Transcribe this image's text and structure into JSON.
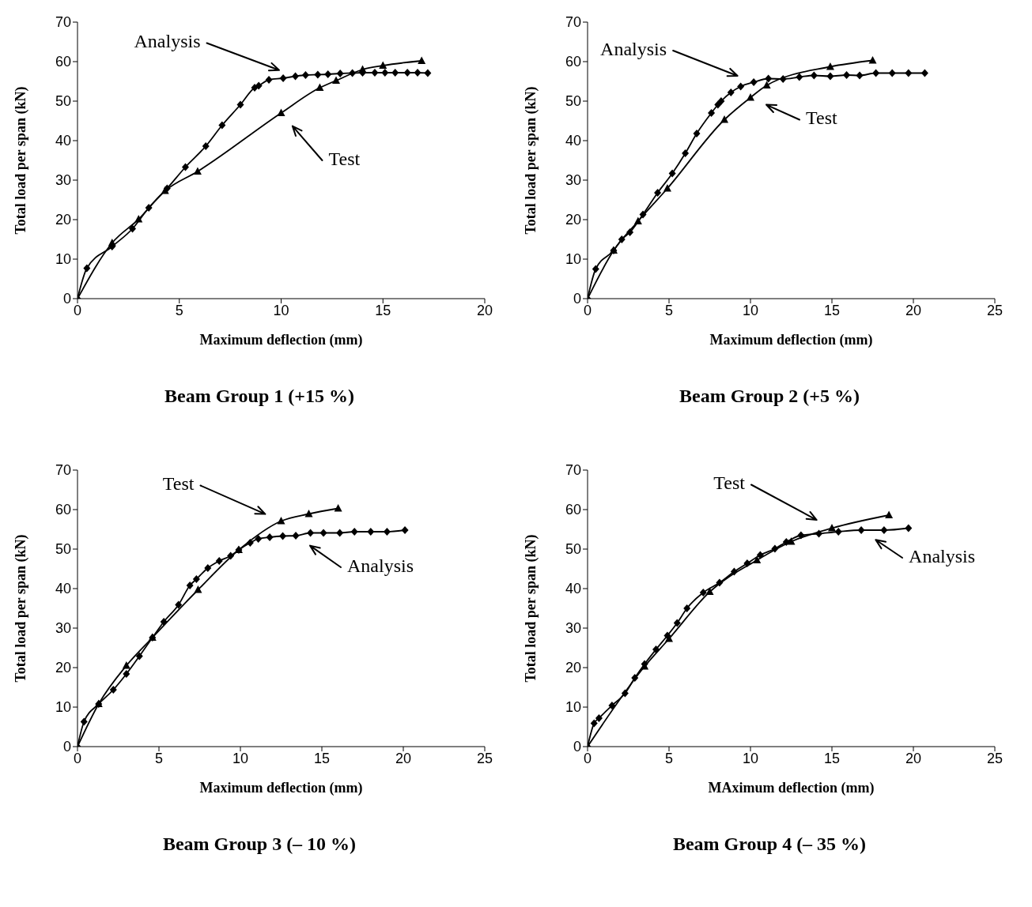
{
  "chart_data": [
    {
      "type": "line",
      "title": "Beam Group 1 (+15 %)",
      "xlabel": "Maximum deflection (mm)",
      "ylabel": "Total load per span (kN)",
      "xlim": [
        0,
        20
      ],
      "xticks": [
        0,
        5,
        10,
        15,
        20
      ],
      "ylim": [
        0,
        70
      ],
      "yticks": [
        0,
        10,
        20,
        30,
        40,
        50,
        60,
        70
      ],
      "line_style": "solid",
      "series": [
        {
          "name": "Analysis",
          "color": "#000000",
          "marker": "diamond",
          "x": [
            0,
            0.46,
            1.7,
            2.7,
            3.5,
            4.4,
            5.3,
            6.3,
            7.1,
            8.0,
            8.7,
            8.9,
            9.4,
            10.1,
            10.7,
            11.2,
            11.8,
            12.3,
            12.9,
            13.5,
            14.0,
            14.6,
            15.1,
            15.6,
            16.2,
            16.7,
            17.2
          ],
          "values": [
            0,
            7.7,
            13.2,
            17.7,
            23,
            27.9,
            33.3,
            38.6,
            43.9,
            49.1,
            53.4,
            53.9,
            55.4,
            55.8,
            56.3,
            56.6,
            56.7,
            56.8,
            57,
            57.1,
            57.2,
            57.2,
            57.2,
            57.2,
            57.2,
            57.2,
            57.1
          ]
        },
        {
          "name": "Test",
          "color": "#000000",
          "marker": "triangle",
          "x": [
            0,
            1.7,
            3.0,
            4.3,
            5.9,
            10.0,
            11.9,
            12.7,
            14.0,
            15.0,
            16.9
          ],
          "values": [
            0,
            14.1,
            20.1,
            27.3,
            32.2,
            47.0,
            53.4,
            55.2,
            58.0,
            59,
            60.2
          ]
        }
      ]
    },
    {
      "type": "line",
      "title": "Beam Group 2 (+5 %)",
      "xlabel": "Maximum deflection (mm)",
      "ylabel": "Total load per span (kN)",
      "xlim": [
        0,
        25
      ],
      "xticks": [
        0,
        5,
        10,
        15,
        20,
        25
      ],
      "ylim": [
        0,
        70
      ],
      "yticks": [
        0,
        10,
        20,
        30,
        40,
        50,
        60,
        70
      ],
      "line_style": "solid",
      "series": [
        {
          "name": "Analysis",
          "color": "#000000",
          "marker": "diamond",
          "x": [
            0,
            0.5,
            1.6,
            2.1,
            2.6,
            3.4,
            4.3,
            5.2,
            6.0,
            6.7,
            7.6,
            8.0,
            8.2,
            8.8,
            9.4,
            10.2,
            11.1,
            12.0,
            13.0,
            13.9,
            14.9,
            15.9,
            16.7,
            17.7,
            18.7,
            19.7,
            20.7
          ],
          "values": [
            0,
            7.5,
            12.2,
            15,
            16.8,
            21.3,
            26.8,
            31.7,
            36.8,
            41.8,
            47,
            49.1,
            50,
            52.2,
            53.7,
            54.8,
            55.7,
            55.6,
            56.1,
            56.5,
            56.3,
            56.6,
            56.5,
            57.1,
            57.1,
            57.1,
            57.1
          ]
        },
        {
          "name": "Test",
          "color": "#000000",
          "marker": "triangle",
          "x": [
            0,
            1.6,
            3.1,
            4.9,
            8.4,
            10.0,
            11.0,
            14.9,
            17.5
          ],
          "values": [
            0,
            12.2,
            19.6,
            27.9,
            45.3,
            50.9,
            54,
            58.7,
            60.3
          ]
        }
      ]
    },
    {
      "type": "line",
      "title": "Beam Group 3 (– 10 %)",
      "xlabel": "Maximum deflection (mm)",
      "ylabel": "Total load per span (kN)",
      "xlim": [
        0,
        25
      ],
      "xticks": [
        0,
        5,
        10,
        15,
        20,
        25
      ],
      "ylim": [
        0,
        70
      ],
      "yticks": [
        0,
        10,
        20,
        30,
        40,
        50,
        60,
        70
      ],
      "line_style": "solid",
      "series": [
        {
          "name": "Analysis",
          "color": "#000000",
          "marker": "diamond",
          "x": [
            0,
            0.4,
            1.3,
            2.2,
            3.0,
            3.8,
            4.6,
            5.3,
            6.2,
            6.9,
            7.3,
            8.0,
            8.7,
            9.4,
            9.9,
            10.6,
            11.1,
            11.8,
            12.6,
            13.4,
            14.3,
            15.1,
            16.1,
            17.0,
            18.0,
            19.0,
            20.1
          ],
          "values": [
            0,
            6.3,
            10.8,
            14.4,
            18.4,
            22.9,
            27.6,
            31.6,
            35.9,
            40.8,
            42.4,
            45.2,
            47,
            48.3,
            49.8,
            51.6,
            52.6,
            53,
            53.3,
            53.4,
            54.1,
            54.1,
            54.1,
            54.4,
            54.4,
            54.4,
            54.8
          ]
        },
        {
          "name": "Test",
          "color": "#000000",
          "marker": "triangle",
          "x": [
            0,
            1.3,
            3.0,
            4.6,
            7.4,
            9.9,
            12.5,
            14.2,
            16.0
          ],
          "values": [
            0,
            10.8,
            20.5,
            27.6,
            39.7,
            49.8,
            57.1,
            58.9,
            60.3
          ]
        }
      ]
    },
    {
      "type": "line",
      "title": "Beam Group 4 (– 35 %)",
      "xlabel": "MAximum deflection (mm)",
      "ylabel": "Total load per span (kN)",
      "xlim": [
        0,
        25
      ],
      "xticks": [
        0,
        5,
        10,
        15,
        20,
        25
      ],
      "ylim": [
        0,
        70
      ],
      "yticks": [
        0,
        10,
        20,
        30,
        40,
        50,
        60,
        70
      ],
      "line_style": "solid",
      "series": [
        {
          "name": "Analysis",
          "color": "#000000",
          "marker": "diamond",
          "x": [
            0,
            0.4,
            0.7,
            1.5,
            2.3,
            2.9,
            3.5,
            4.2,
            4.9,
            5.5,
            6.1,
            7.1,
            8.1,
            9.0,
            9.8,
            10.6,
            11.5,
            12.2,
            13.1,
            14.2,
            15.4,
            16.8,
            18.2,
            19.7
          ],
          "values": [
            0,
            5.9,
            7.2,
            10.4,
            13.5,
            17.4,
            20.9,
            24.6,
            28.1,
            31.3,
            35,
            39,
            41.5,
            44.3,
            46.4,
            48.5,
            50.1,
            51.8,
            53.5,
            53.9,
            54.4,
            54.8,
            54.8,
            55.3
          ]
        },
        {
          "name": "Test",
          "color": "#000000",
          "marker": "triangle",
          "x": [
            0,
            3.5,
            5.0,
            7.5,
            10.4,
            12.5,
            15.0,
            18.5
          ],
          "values": [
            0,
            20.3,
            27.3,
            39.2,
            47.2,
            51.9,
            55.3,
            58.6
          ]
        }
      ]
    }
  ]
}
